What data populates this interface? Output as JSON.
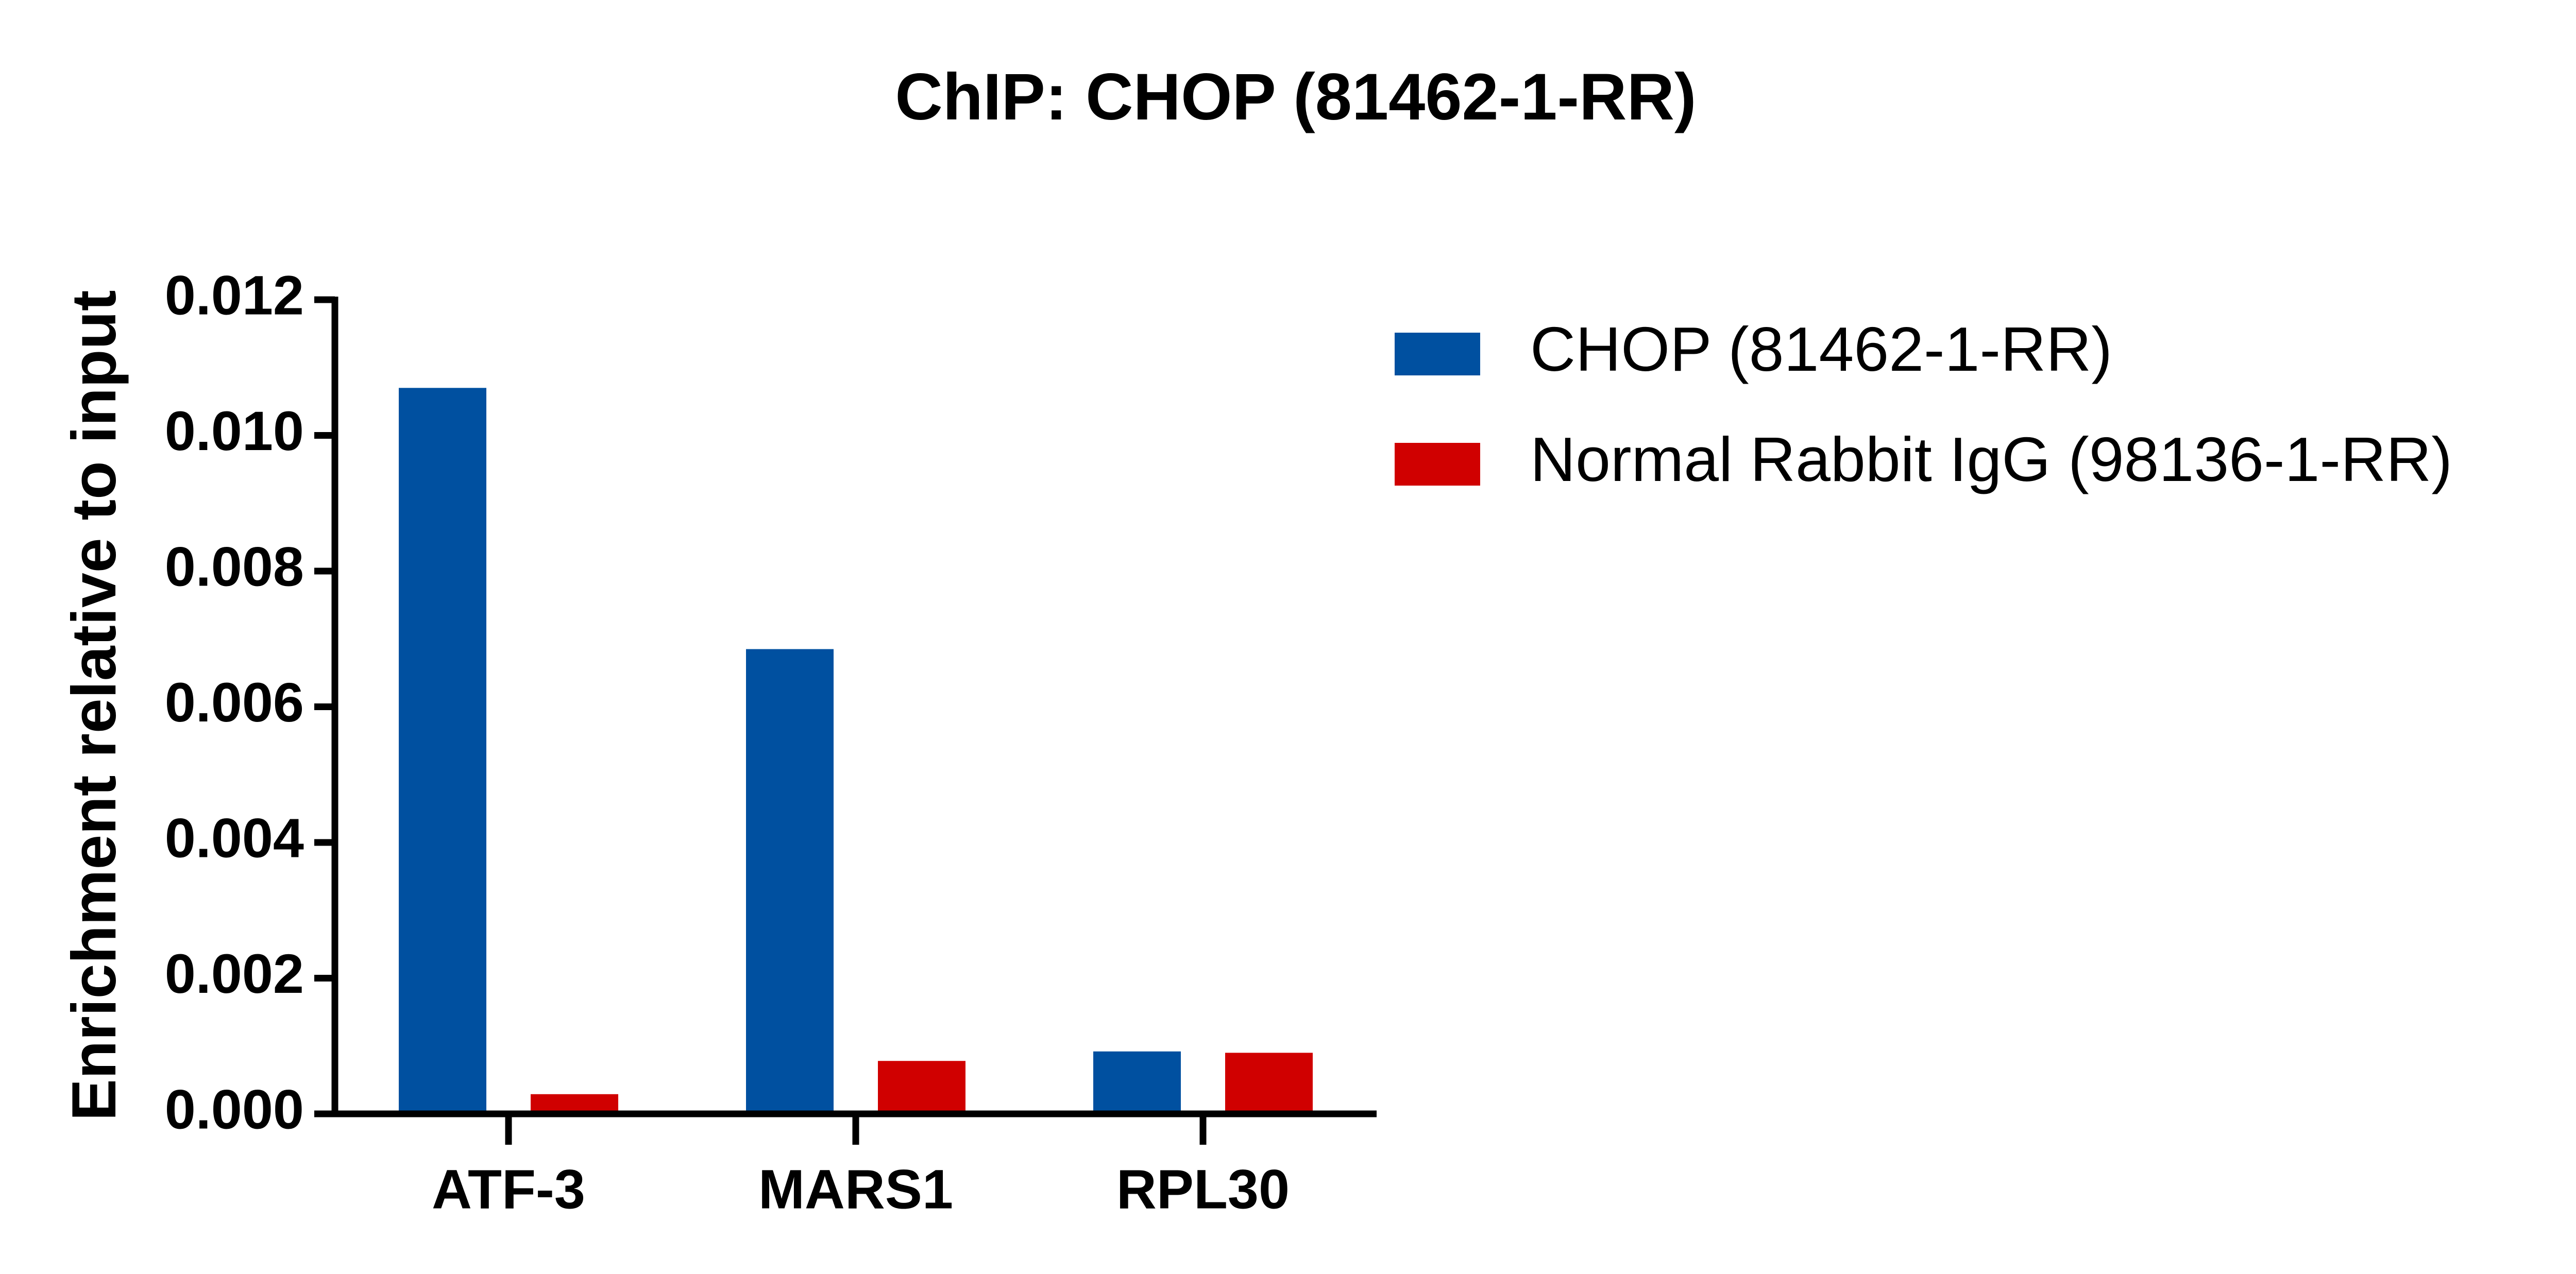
{
  "chart_data": {
    "type": "bar",
    "title": "ChIP: CHOP (81462-1-RR)",
    "y_label": "Enrichment relative to input",
    "categories": [
      "ATF-3",
      "MARS1",
      "RPL30"
    ],
    "series": [
      {
        "name": "CHOP (81462-1-RR)",
        "color": "#0050a0",
        "values": [
          0.0107,
          0.00685,
          0.00092
        ]
      },
      {
        "name": "Normal Rabbit IgG (98136-1-RR)",
        "color": "#d00000",
        "values": [
          0.00029,
          0.00078,
          0.0009
        ]
      }
    ],
    "ylim": [
      0,
      0.012
    ],
    "yticks": [
      {
        "value": 0,
        "label": "0.000"
      },
      {
        "value": 0.002,
        "label": "0.002"
      },
      {
        "value": 0.004,
        "label": "0.004"
      },
      {
        "value": 0.006,
        "label": "0.006"
      },
      {
        "value": 0.008,
        "label": "0.008"
      },
      {
        "value": 0.01,
        "label": "0.010"
      },
      {
        "value": 0.012,
        "label": "0.012"
      }
    ],
    "legend": "top-right",
    "grid": false
  }
}
